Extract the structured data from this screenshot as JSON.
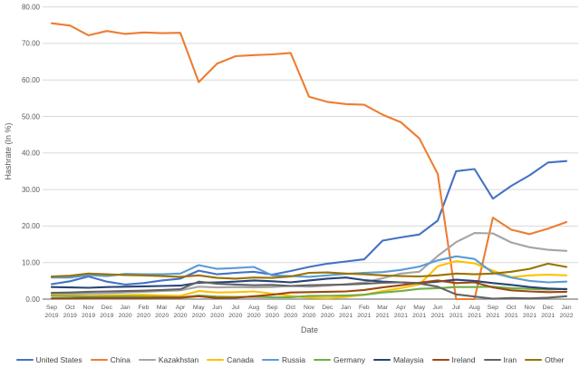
{
  "chart_data": {
    "type": "line",
    "title": "",
    "xlabel": "Date",
    "ylabel": "Hashrate (In %)",
    "ylim": [
      0,
      80
    ],
    "ytick_step": 10,
    "grid": "horizontal-gridlines",
    "legend_position": "bottom",
    "y_tick_labels": [
      "80.00",
      "70.00",
      "60.00",
      "50.00",
      "40.00",
      "30.00",
      "20.00",
      "10.00",
      "0.00"
    ],
    "categories": [
      "Sep 2019",
      "Oct 2019",
      "Nov 2019",
      "Dec 2019",
      "Jan 2020",
      "Feb 2020",
      "Mar 2020",
      "Apr 2020",
      "May 2020",
      "Jun 2020",
      "Jul 2020",
      "Aug 2020",
      "Sep 2020",
      "Oct 2020",
      "Nov 2020",
      "Dec 2020",
      "Jan 2021",
      "Feb 2021",
      "Mar 2021",
      "Apr 2021",
      "May 2021",
      "Jun 2021",
      "Jul 2021",
      "Aug 2021",
      "Sep 2021",
      "Oct 2021",
      "Nov 2021",
      "Dec 2021",
      "Jan 2022"
    ],
    "series": [
      {
        "name": "United States",
        "color": "#4472C4",
        "values": [
          4.1,
          4.9,
          6.2,
          4.8,
          4.0,
          4.4,
          5.1,
          5.6,
          7.8,
          6.8,
          7.2,
          7.5,
          6.7,
          7.7,
          8.8,
          9.7,
          10.3,
          10.9,
          16.0,
          16.9,
          17.7,
          21.5,
          35.0,
          35.6,
          27.5,
          31.0,
          33.9,
          37.4,
          37.8
        ]
      },
      {
        "name": "China",
        "color": "#ED7D31",
        "values": [
          75.5,
          74.9,
          72.2,
          73.4,
          72.6,
          73.0,
          72.8,
          72.9,
          59.4,
          64.5,
          66.5,
          66.8,
          67.0,
          67.4,
          55.4,
          54.0,
          53.4,
          53.2,
          50.5,
          48.4,
          44.0,
          34.3,
          0.0,
          0.0,
          22.3,
          19.0,
          17.8,
          19.3,
          21.1
        ]
      },
      {
        "name": "Kazakhstan",
        "color": "#A5A5A5",
        "values": [
          1.4,
          1.4,
          1.5,
          1.6,
          1.8,
          2.0,
          2.2,
          2.4,
          3.4,
          3.2,
          3.3,
          3.2,
          3.3,
          3.6,
          3.4,
          3.7,
          4.1,
          4.6,
          5.7,
          7.0,
          7.5,
          11.8,
          15.6,
          18.1,
          18.0,
          15.5,
          14.2,
          13.5,
          13.2
        ]
      },
      {
        "name": "Canada",
        "color": "#FFC000",
        "values": [
          1.1,
          1.0,
          0.9,
          1.0,
          1.1,
          1.2,
          1.0,
          0.9,
          2.2,
          1.8,
          1.9,
          2.1,
          1.5,
          0.9,
          0.4,
          0.2,
          0.6,
          1.2,
          2.2,
          3.0,
          4.0,
          9.0,
          10.4,
          9.8,
          7.8,
          6.0,
          6.5,
          6.7,
          6.5
        ]
      },
      {
        "name": "Russia",
        "color": "#5B9BD5",
        "values": [
          5.9,
          5.9,
          6.6,
          6.3,
          6.9,
          6.8,
          6.8,
          7.0,
          9.3,
          8.3,
          8.5,
          8.8,
          6.5,
          6.3,
          6.1,
          6.5,
          6.9,
          7.2,
          7.4,
          8.0,
          8.9,
          10.6,
          11.7,
          11.0,
          7.2,
          5.9,
          5.0,
          4.6,
          4.8
        ]
      },
      {
        "name": "Germany",
        "color": "#70AD47",
        "values": [
          0.9,
          0.8,
          0.7,
          0.7,
          0.8,
          0.7,
          0.6,
          0.5,
          1.0,
          0.7,
          0.6,
          0.6,
          0.5,
          0.5,
          0.9,
          0.9,
          1.0,
          1.2,
          1.8,
          2.2,
          2.8,
          3.0,
          3.3,
          3.3,
          3.4,
          3.0,
          2.8,
          2.6,
          2.8
        ]
      },
      {
        "name": "Malaysia",
        "color": "#264478",
        "values": [
          3.3,
          3.2,
          3.1,
          3.3,
          3.4,
          3.5,
          3.6,
          3.7,
          4.5,
          4.6,
          4.8,
          5.1,
          4.9,
          4.6,
          5.1,
          5.6,
          5.9,
          5.2,
          4.8,
          4.6,
          4.4,
          4.8,
          5.3,
          5.0,
          4.4,
          3.9,
          3.3,
          2.9,
          2.7
        ]
      },
      {
        "name": "Ireland",
        "color": "#9E480E",
        "values": [
          0.2,
          0.2,
          0.3,
          0.3,
          0.3,
          0.3,
          0.4,
          0.4,
          0.8,
          0.3,
          0.4,
          0.8,
          1.2,
          1.8,
          1.9,
          2.0,
          2.1,
          2.5,
          3.2,
          3.8,
          4.5,
          5.1,
          4.4,
          4.6,
          3.2,
          2.4,
          2.1,
          1.9,
          2.0
        ]
      },
      {
        "name": "Iran",
        "color": "#636363",
        "values": [
          1.7,
          1.8,
          2.0,
          2.1,
          2.2,
          2.3,
          2.5,
          2.7,
          4.8,
          4.2,
          4.0,
          3.8,
          3.9,
          3.6,
          3.8,
          3.9,
          4.0,
          4.2,
          4.5,
          4.6,
          4.3,
          3.4,
          1.3,
          0.7,
          0.1,
          0.3,
          0.2,
          0.4,
          0.8
        ]
      },
      {
        "name": "Other",
        "color": "#997300",
        "values": [
          6.2,
          6.4,
          7.0,
          6.8,
          6.6,
          6.5,
          6.3,
          6.1,
          6.5,
          5.8,
          5.6,
          5.9,
          5.8,
          6.2,
          7.2,
          7.3,
          7.0,
          6.8,
          6.5,
          6.3,
          6.2,
          6.5,
          7.0,
          6.8,
          7.0,
          7.5,
          8.3,
          9.7,
          8.8
        ]
      }
    ]
  }
}
